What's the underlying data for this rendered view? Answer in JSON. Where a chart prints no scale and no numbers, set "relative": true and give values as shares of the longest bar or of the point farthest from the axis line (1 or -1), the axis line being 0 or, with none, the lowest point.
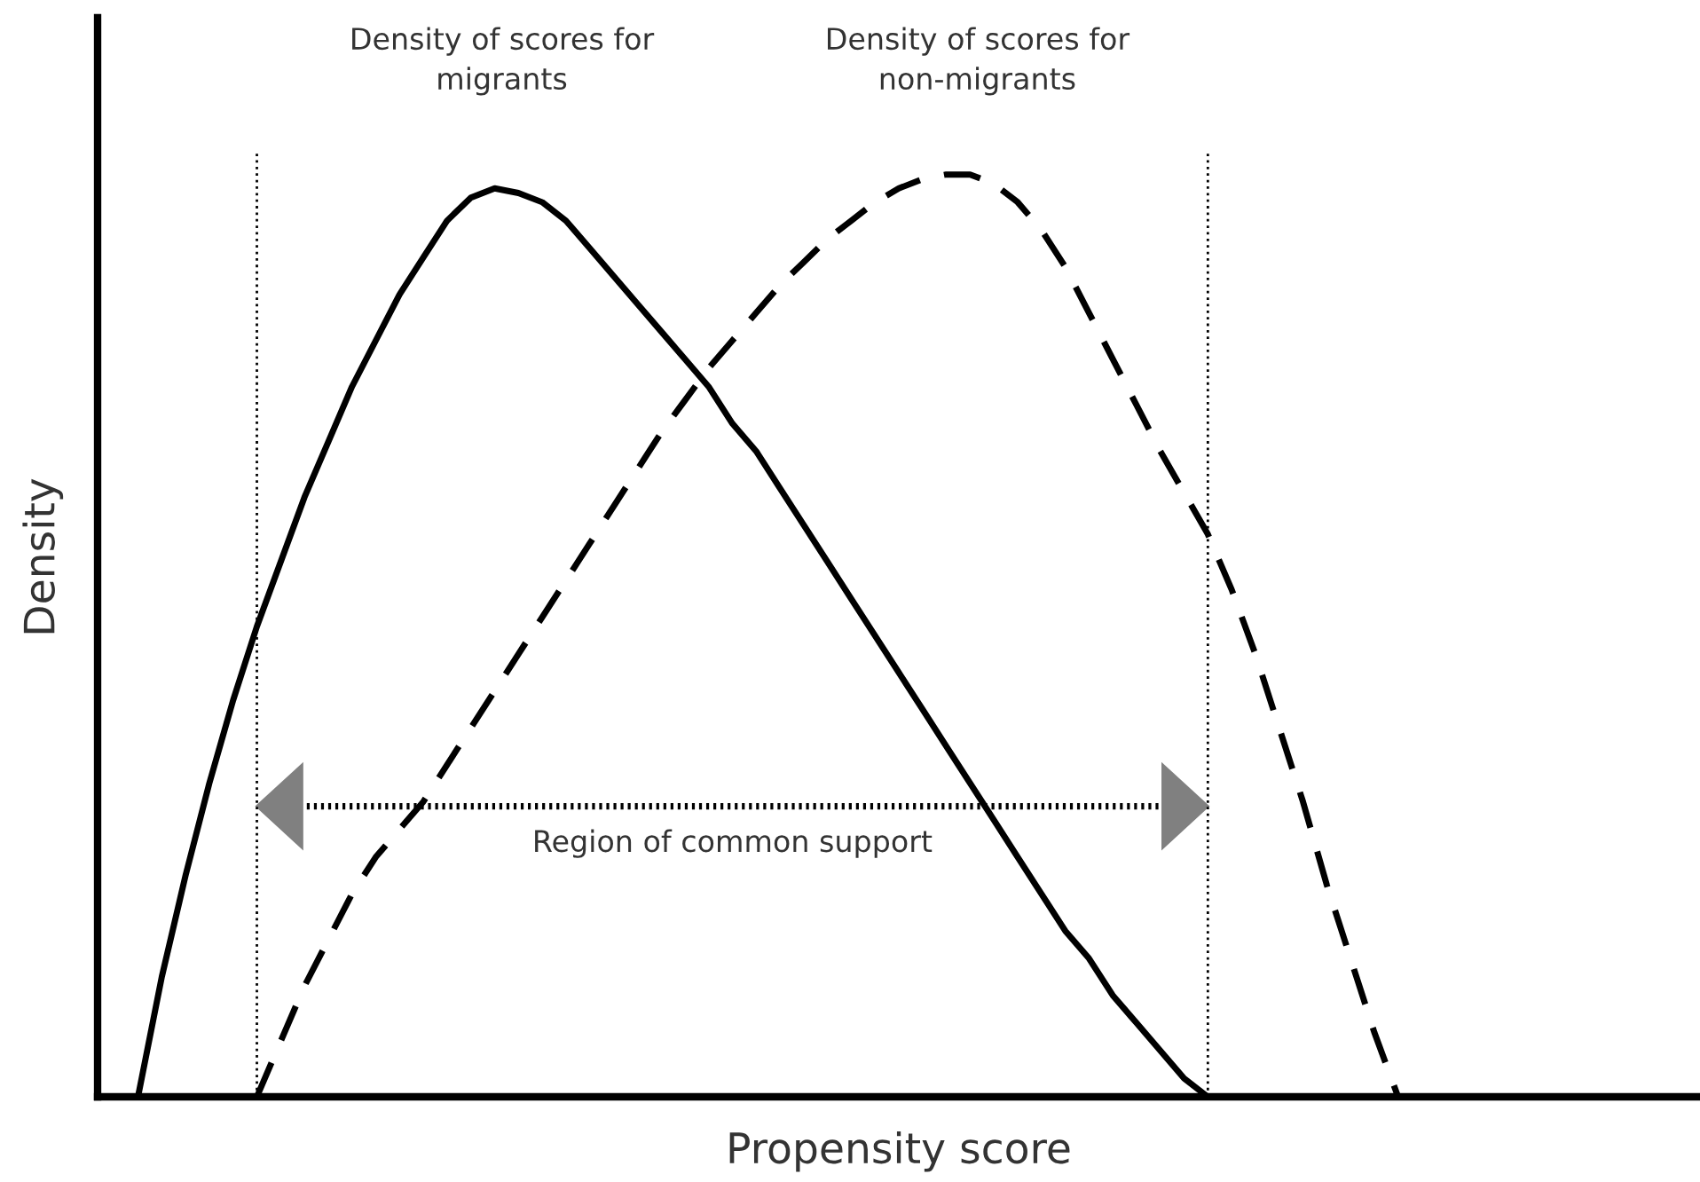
{
  "chart_data": {
    "type": "line",
    "relative": true,
    "xlabel": "Propensity score",
    "ylabel": "Density",
    "categories": [
      null,
      null,
      null,
      null,
      null,
      null,
      null,
      null,
      null,
      null,
      null,
      null,
      null,
      null,
      null,
      null,
      null,
      null,
      null,
      null,
      null,
      null,
      null,
      null,
      null,
      null,
      null,
      null,
      null,
      null,
      null,
      null,
      null,
      null,
      null,
      null,
      null,
      null,
      null,
      null,
      null,
      null,
      null,
      null,
      null,
      null,
      null,
      null,
      null,
      null,
      null,
      null,
      null,
      null
    ],
    "series": [
      {
        "color": "#000000",
        "line_style": "solid",
        "values": [
          0,
          0.13,
          0.24,
          0.34,
          0.43,
          0.51,
          0.58,
          0.65,
          0.71,
          0.77,
          0.82,
          0.87,
          0.91,
          0.95,
          0.975,
          0.985,
          0.98,
          0.97,
          0.95,
          0.92,
          0.89,
          0.86,
          0.83,
          0.8,
          0.77,
          0.73,
          0.7,
          0.66,
          0.62,
          0.58,
          0.54,
          0.5,
          0.46,
          0.42,
          0.38,
          0.34,
          0.3,
          0.26,
          0.22,
          0.18,
          0.15,
          0.11,
          0.08,
          0.05,
          0.02,
          0,
          null,
          null,
          null,
          null,
          null,
          null,
          null,
          null
        ]
      },
      {
        "color": "#000000",
        "line_style": "dashed",
        "values": [
          null,
          null,
          null,
          null,
          null,
          0,
          0.06,
          0.12,
          0.17,
          0.22,
          0.26,
          0.29,
          0.32,
          0.36,
          0.4,
          0.44,
          0.48,
          0.52,
          0.56,
          0.6,
          0.64,
          0.68,
          0.72,
          0.755,
          0.79,
          0.82,
          0.85,
          0.88,
          0.905,
          0.93,
          0.95,
          0.97,
          0.985,
          0.995,
          1.0,
          1.0,
          0.99,
          0.97,
          0.94,
          0.9,
          0.85,
          0.8,
          0.75,
          0.7,
          0.655,
          0.61,
          0.55,
          0.48,
          0.4,
          0.32,
          0.23,
          0.15,
          0.07,
          0
        ]
      }
    ],
    "annotations": [
      "Density of scores for\nmigrants",
      "Density of scores for\nnon-migrants",
      "Region of common support"
    ],
    "legend": false
  }
}
